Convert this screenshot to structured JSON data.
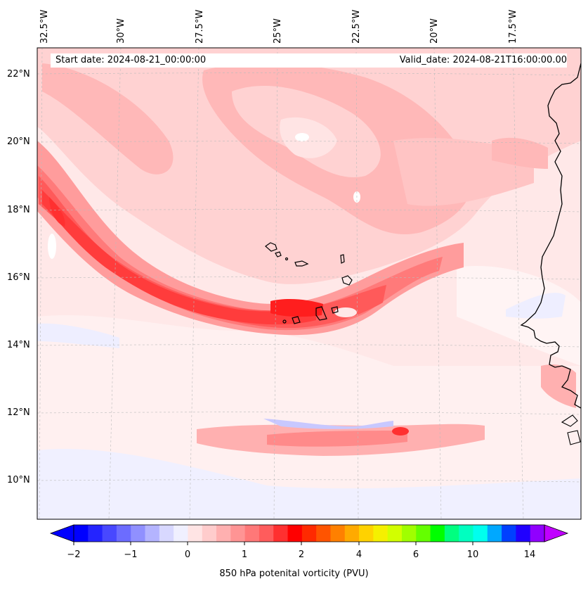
{
  "header": {
    "start_date": "Start date: 2024-08-21_00:00:00",
    "valid_date": "Valid_date: 2024-08-21T16:00:00.00"
  },
  "axes": {
    "longitude_labels": [
      "32.5°W",
      "30°W",
      "27.5°W",
      "25°W",
      "22.5°W",
      "20°W",
      "17.5°W"
    ],
    "latitude_labels": [
      "22°N",
      "20°N",
      "18°N",
      "16°N",
      "14°N",
      "12°N",
      "10°N"
    ]
  },
  "colorbar": {
    "title": "850 hPa potenital vorticity (PVU)",
    "tick_labels": [
      "−2",
      "−1",
      "0",
      "1",
      "2",
      "4",
      "6",
      "10",
      "14"
    ],
    "colors": [
      "#0000ff",
      "#2424ff",
      "#4848ff",
      "#6c6cff",
      "#9090ff",
      "#b4b4ff",
      "#d8d8ff",
      "#f0f0ff",
      "#ffe4e4",
      "#ffcccc",
      "#ffb0b0",
      "#ff9494",
      "#ff7878",
      "#ff5c5c",
      "#ff3030",
      "#ff0000",
      "#ff2a00",
      "#ff5400",
      "#ff8000",
      "#ffaa00",
      "#ffd200",
      "#f5f000",
      "#d2ff00",
      "#a0ff00",
      "#64ff00",
      "#00ff00",
      "#00ff80",
      "#00ffc0",
      "#00ffee",
      "#00a8ff",
      "#0040ff",
      "#2000ff",
      "#9000ff"
    ],
    "under_color": "#0000ff",
    "over_color": "#c000ff"
  }
}
